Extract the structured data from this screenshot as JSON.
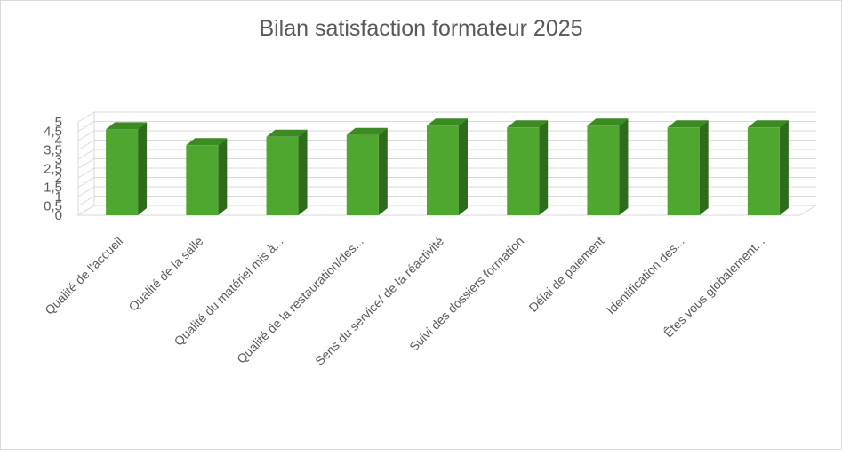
{
  "chart_data": {
    "type": "bar",
    "title": "Bilan satisfaction formateur 2025",
    "xlabel": "",
    "ylabel": "",
    "ylim": [
      0,
      5
    ],
    "yticks": [
      "0",
      "0,5",
      "1",
      "1,5",
      "2",
      "2,5",
      "3",
      "3,5",
      "4",
      "4,5",
      "5"
    ],
    "grid": true,
    "legend": "none",
    "style": "3d-column",
    "categories": [
      "Qualité de l'accueil",
      "Qualité de la salle",
      "Qualité du matériel mis à...",
      "Qualité de la restauration/des...",
      "Sens du service/ de la réactivité",
      "Suivi des dossiers formation",
      "Délai de paiement",
      "Identification des...",
      "Êtes vous globalement..."
    ],
    "values": [
      4.6,
      3.75,
      4.2,
      4.3,
      4.8,
      4.7,
      4.8,
      4.7,
      4.7
    ],
    "colors": {
      "front": "#4ea72e",
      "top": "#3b8a22",
      "side": "#2e6b1a",
      "grid": "#d9d9d9",
      "text": "#595959"
    }
  }
}
